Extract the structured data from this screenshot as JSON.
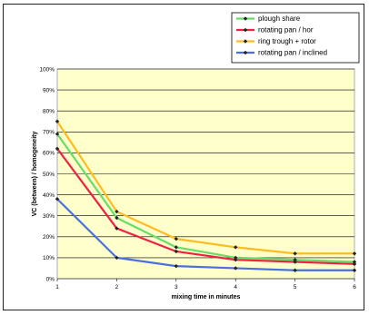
{
  "chart_data": {
    "type": "line",
    "title": "",
    "xlabel": "mixing time in minutes",
    "ylabel": "VC (between) / homogeneity",
    "x": [
      1,
      2,
      3,
      4,
      5,
      6
    ],
    "xlim": [
      1,
      6
    ],
    "ylim": [
      0,
      100
    ],
    "y_ticks": [
      "0%",
      "10%",
      "20%",
      "30%",
      "40%",
      "50%",
      "60%",
      "70%",
      "80%",
      "90%",
      "100%"
    ],
    "x_ticks": [
      "1",
      "2",
      "3",
      "4",
      "5",
      "6"
    ],
    "grid": true,
    "legend_position": "top-right",
    "plot_background": "#ffffcc",
    "series": [
      {
        "name": "plough share",
        "color": "#66dd66",
        "values": [
          69,
          29,
          15,
          10,
          9,
          8
        ]
      },
      {
        "name": "rotating pan / hor",
        "color": "#ee2244",
        "values": [
          62,
          24,
          13,
          9,
          8,
          7
        ]
      },
      {
        "name": "ring trough + rotor",
        "color": "#ffbb22",
        "values": [
          75,
          32,
          19,
          15,
          12,
          12
        ]
      },
      {
        "name": "rotating pan / inclined",
        "color": "#4a6fe3",
        "values": [
          38,
          10,
          6,
          5,
          4,
          4
        ]
      }
    ]
  }
}
